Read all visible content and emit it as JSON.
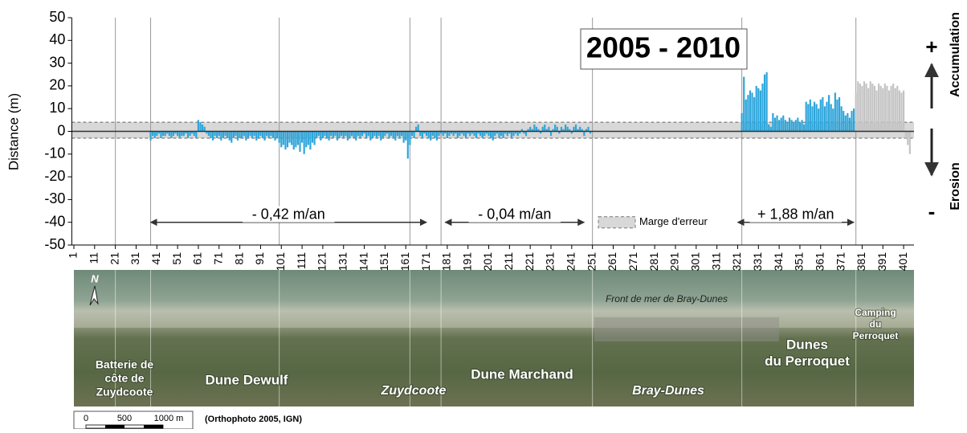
{
  "chart_data": {
    "type": "bar",
    "title": "2005 - 2010",
    "y_label": "Distance (m)",
    "xlim": [
      0,
      406
    ],
    "ylim": [
      -50,
      50
    ],
    "yticks": [
      50,
      40,
      30,
      20,
      10,
      0,
      -10,
      -20,
      -30,
      -40,
      -50
    ],
    "xticks": [
      1,
      11,
      21,
      31,
      41,
      51,
      61,
      71,
      81,
      91,
      101,
      111,
      121,
      131,
      141,
      151,
      161,
      171,
      181,
      191,
      201,
      211,
      221,
      231,
      241,
      251,
      261,
      271,
      281,
      291,
      301,
      311,
      321,
      331,
      341,
      351,
      361,
      371,
      381,
      391,
      401
    ],
    "vlines": [
      21,
      38,
      100,
      163,
      178,
      251,
      323,
      378
    ],
    "error_band": {
      "label": "Marge d'erreur",
      "range": [
        -3,
        4
      ]
    },
    "series": [
      {
        "color": "#2ea6db",
        "x": [
          38,
          39,
          40,
          41,
          42,
          43,
          44,
          45,
          46,
          47,
          48,
          49,
          50,
          51,
          52,
          53,
          54,
          55,
          56,
          57,
          58,
          59,
          60,
          61,
          62,
          63,
          64,
          65,
          66,
          67,
          68,
          69,
          70,
          71,
          72,
          73,
          74,
          75,
          76,
          77,
          78,
          79,
          80,
          81,
          82,
          83,
          84,
          85,
          86,
          87,
          88,
          89,
          90,
          91,
          92,
          93,
          94,
          95,
          96,
          97,
          98,
          99,
          100,
          101,
          102,
          103,
          104,
          105,
          106,
          107,
          108,
          109,
          110,
          111,
          112,
          113,
          114,
          115,
          116,
          117,
          118,
          119,
          120,
          121,
          122,
          123,
          124,
          125,
          126,
          127,
          128,
          129,
          130,
          131,
          132,
          133,
          134,
          135,
          136,
          137,
          138,
          139,
          140,
          141,
          142,
          143,
          144,
          145,
          146,
          147,
          148,
          149,
          150,
          151,
          152,
          153,
          154,
          155,
          156,
          157,
          158,
          159,
          160,
          161,
          162,
          163,
          164,
          165,
          166,
          167,
          168,
          169,
          170,
          171,
          172,
          173,
          174,
          175,
          176,
          177,
          178,
          179,
          180,
          181,
          182,
          183,
          184,
          185,
          186,
          187,
          188,
          189,
          190,
          191,
          192,
          193,
          194,
          195,
          196,
          197,
          198,
          199,
          200,
          201,
          202,
          203,
          204,
          205,
          206,
          207,
          208,
          209,
          210,
          211,
          212,
          213,
          214,
          215,
          216,
          217,
          218,
          219,
          220,
          221,
          222,
          223,
          224,
          225,
          226,
          227,
          228,
          229,
          230,
          231,
          232,
          233,
          234,
          235,
          236,
          237,
          238,
          239,
          240,
          241,
          242,
          243,
          244,
          245,
          246,
          247,
          248,
          249,
          250,
          323,
          324,
          325,
          326,
          327,
          328,
          329,
          330,
          331,
          332,
          333,
          334,
          335,
          336,
          337,
          338,
          339,
          340,
          341,
          342,
          343,
          344,
          345,
          346,
          347,
          348,
          349,
          350,
          351,
          352,
          353,
          354,
          355,
          356,
          357,
          358,
          359,
          360,
          361,
          362,
          363,
          364,
          365,
          366,
          367,
          368,
          369,
          370,
          371,
          372,
          373,
          374,
          375,
          376,
          377
        ],
        "values": [
          -4,
          -2,
          -3,
          -2,
          -1,
          -3,
          -2,
          -2,
          -1,
          -2,
          -3,
          -2,
          -1,
          -2,
          -3,
          -2,
          -2,
          -1,
          -3,
          -2,
          -1,
          -2,
          -3,
          5,
          4,
          3,
          2,
          -1,
          -2,
          -3,
          -4,
          -2,
          -3,
          -2,
          -4,
          -3,
          -2,
          -3,
          -4,
          -5,
          -3,
          -2,
          -4,
          -3,
          -3,
          -2,
          -4,
          -3,
          -2,
          -3,
          -2,
          -4,
          -3,
          -2,
          -3,
          -4,
          -2,
          -3,
          -2,
          -3,
          -4,
          -3,
          -5,
          -7,
          -6,
          -8,
          -7,
          -5,
          -6,
          -8,
          -7,
          -6,
          -9,
          -5,
          -10,
          -7,
          -6,
          -8,
          -5,
          -6,
          -3,
          -2,
          -4,
          -3,
          -2,
          -3,
          -4,
          -2,
          -3,
          -2,
          -4,
          -3,
          -2,
          -3,
          -2,
          -4,
          -3,
          -2,
          -3,
          -4,
          -2,
          -3,
          -2,
          -1,
          -3,
          -2,
          -4,
          -3,
          -2,
          -3,
          -2,
          -4,
          -3,
          -2,
          -1,
          -3,
          -2,
          -3,
          -4,
          -2,
          -3,
          -2,
          -5,
          -4,
          -12,
          -6,
          -2,
          -3,
          2,
          3,
          -2,
          -3,
          -1,
          -2,
          -3,
          -4,
          -2,
          -3,
          -4,
          -2,
          -1,
          -2,
          -1,
          -3,
          -2,
          -1,
          -2,
          -1,
          -3,
          -2,
          -1,
          -2,
          -3,
          -1,
          -2,
          -1,
          -2,
          -3,
          -1,
          -2,
          -3,
          -2,
          -1,
          -2,
          -3,
          -4,
          -2,
          -1,
          -3,
          -2,
          -3,
          -1,
          -2,
          -1,
          -3,
          -2,
          -1,
          -2,
          -1,
          1,
          -1,
          -2,
          1,
          2,
          1,
          3,
          2,
          1,
          -1,
          2,
          3,
          1,
          2,
          -2,
          1,
          3,
          2,
          -1,
          2,
          1,
          3,
          2,
          1,
          -1,
          2,
          3,
          1,
          2,
          1,
          -2,
          1,
          2,
          -1,
          8,
          24,
          14,
          16,
          18,
          17,
          15,
          20,
          19,
          18,
          21,
          25,
          26,
          3,
          2,
          8,
          6,
          7,
          5,
          6,
          7,
          5,
          4,
          6,
          5,
          4,
          5,
          6,
          4,
          5,
          3,
          13,
          12,
          14,
          11,
          13,
          12,
          10,
          14,
          15,
          11,
          13,
          16,
          12,
          10,
          17,
          14,
          15,
          11,
          9,
          7,
          8,
          6,
          9,
          10
        ]
      },
      {
        "color": "#c4c4c4",
        "x": [
          378,
          379,
          380,
          381,
          382,
          383,
          384,
          385,
          386,
          387,
          388,
          389,
          390,
          391,
          392,
          393,
          394,
          395,
          396,
          397,
          398,
          399,
          400,
          401,
          402,
          403,
          404
        ],
        "values": [
          17,
          22,
          21,
          20,
          22,
          21,
          19,
          22,
          21,
          20,
          18,
          21,
          20,
          19,
          21,
          20,
          18,
          20,
          21,
          19,
          20,
          18,
          17,
          18,
          -3,
          -6,
          -10
        ]
      }
    ],
    "annotations": [
      {
        "text": "- 0,42 m/an",
        "x": [
          38,
          171
        ],
        "y": -40
      },
      {
        "text": "- 0,04 m/an",
        "x": [
          180,
          247
        ],
        "y": -40
      },
      {
        "text": "+ 1,88 m/an",
        "x": [
          321,
          377
        ],
        "y": -40
      }
    ],
    "side_labels": {
      "plus": "+",
      "accumulation": "Accumulation",
      "minus": "-",
      "erosion": "Erosion"
    }
  },
  "photo": {
    "north": "N",
    "front": "Front de mer de Bray-Dunes",
    "labels": [
      {
        "lines": [
          "Batterie de",
          "côte de",
          "Zuydcoote"
        ]
      },
      {
        "lines": [
          "Dune Dewulf"
        ]
      },
      {
        "lines": [
          "Zuydcoote"
        ]
      },
      {
        "lines": [
          "Dune Marchand"
        ]
      },
      {
        "lines": [
          "Bray-Dunes"
        ]
      },
      {
        "lines": [
          "Dunes",
          "du Perroquet"
        ]
      },
      {
        "lines": [
          "Camping",
          "du",
          "Perroquet"
        ]
      }
    ],
    "scale": [
      "0",
      "500",
      "1000 m"
    ],
    "source": "(Orthophoto 2005, IGN)"
  }
}
